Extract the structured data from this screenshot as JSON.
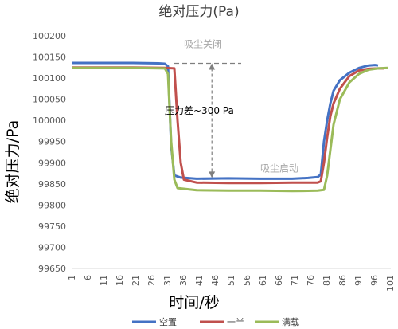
{
  "chart_data": {
    "type": "line",
    "title": "绝对压力(Pa)",
    "xlabel": "时间/秒",
    "ylabel": "绝对压力/Pa",
    "ylim": [
      99650,
      100200
    ],
    "ytick_step": 50,
    "xlim": [
      1,
      101
    ],
    "x_ticks": [
      1,
      6,
      11,
      16,
      21,
      26,
      31,
      36,
      41,
      46,
      51,
      56,
      61,
      66,
      71,
      76,
      81,
      86,
      91,
      96,
      101
    ],
    "grid": false,
    "legend_position": "bottom",
    "series": [
      {
        "name": "空置",
        "color": "#4472C4",
        "points": [
          [
            1,
            100136
          ],
          [
            10,
            100136
          ],
          [
            20,
            100136
          ],
          [
            28,
            100135
          ],
          [
            30,
            100134
          ],
          [
            31,
            100128
          ],
          [
            32,
            99940
          ],
          [
            33,
            99870
          ],
          [
            35,
            99865
          ],
          [
            40,
            99862
          ],
          [
            50,
            99863
          ],
          [
            60,
            99862
          ],
          [
            70,
            99862
          ],
          [
            75,
            99864
          ],
          [
            78,
            99866
          ],
          [
            79,
            99872
          ],
          [
            80,
            99950
          ],
          [
            81,
            100000
          ],
          [
            82,
            100040
          ],
          [
            83,
            100070
          ],
          [
            85,
            100095
          ],
          [
            88,
            100113
          ],
          [
            91,
            100124
          ],
          [
            94,
            100130
          ],
          [
            96,
            100131
          ],
          [
            97,
            100130
          ]
        ]
      },
      {
        "name": "一半",
        "color": "#C0504D",
        "points": [
          [
            1,
            100125
          ],
          [
            10,
            100125
          ],
          [
            20,
            100125
          ],
          [
            30,
            100124
          ],
          [
            33,
            100123
          ],
          [
            34,
            100000
          ],
          [
            35,
            99900
          ],
          [
            36,
            99860
          ],
          [
            40,
            99853
          ],
          [
            50,
            99852
          ],
          [
            60,
            99852
          ],
          [
            70,
            99853
          ],
          [
            78,
            99853
          ],
          [
            79,
            99856
          ],
          [
            80,
            99900
          ],
          [
            81,
            99960
          ],
          [
            82,
            100010
          ],
          [
            83,
            100040
          ],
          [
            85,
            100075
          ],
          [
            88,
            100105
          ],
          [
            91,
            100118
          ],
          [
            94,
            100122
          ],
          [
            97,
            100123
          ],
          [
            99,
            100123
          ]
        ]
      },
      {
        "name": "满载",
        "color": "#9BBB59",
        "points": [
          [
            1,
            100124
          ],
          [
            10,
            100124
          ],
          [
            20,
            100124
          ],
          [
            30,
            100123
          ],
          [
            31,
            100110
          ],
          [
            32,
            99950
          ],
          [
            33,
            99860
          ],
          [
            34,
            99840
          ],
          [
            40,
            99835
          ],
          [
            50,
            99834
          ],
          [
            60,
            99834
          ],
          [
            70,
            99833
          ],
          [
            78,
            99834
          ],
          [
            80,
            99836
          ],
          [
            81,
            99870
          ],
          [
            82,
            99930
          ],
          [
            83,
            99990
          ],
          [
            85,
            100050
          ],
          [
            88,
            100090
          ],
          [
            91,
            100110
          ],
          [
            94,
            100120
          ],
          [
            97,
            100123
          ],
          [
            100,
            100124
          ]
        ]
      }
    ],
    "annotations": [
      {
        "id": "suction-off",
        "text": "吸尘关闭",
        "x": 36,
        "y": 100173,
        "color": "#A6A6A6"
      },
      {
        "id": "diff",
        "text": "压力差~300 Pa",
        "x": 30,
        "y": 100015,
        "color": "#000000"
      },
      {
        "id": "suction-on",
        "text": "吸尘启动",
        "x": 60,
        "y": 99879,
        "color": "#A6A6A6"
      }
    ],
    "reference": {
      "upper_y": 100135,
      "lower_y": 99864,
      "dash_x": [
        33,
        54
      ],
      "arrow_x": 44.8
    }
  }
}
